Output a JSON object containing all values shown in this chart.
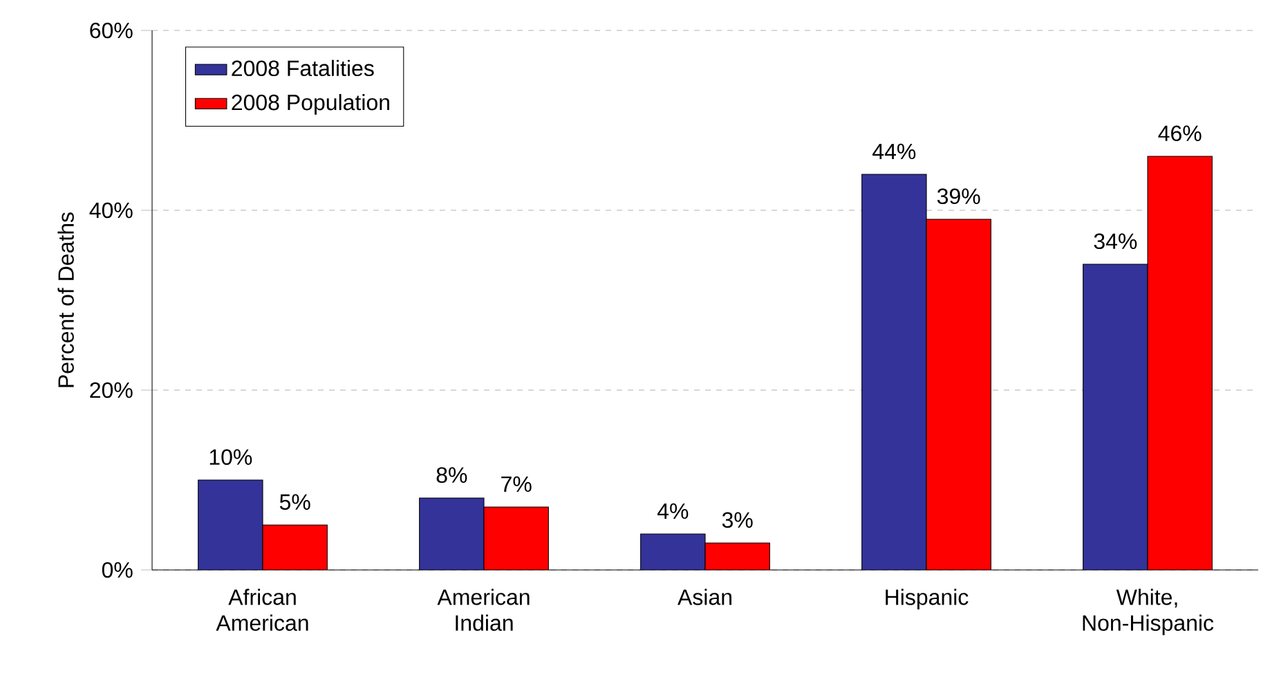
{
  "chart_data": {
    "type": "bar",
    "ylabel": "Percent of Deaths",
    "categories": [
      "African American",
      "American Indian",
      "Asian",
      "Hispanic",
      "White, Non-Hispanic"
    ],
    "series": [
      {
        "name": "2008 Fatalities",
        "color": "#333399",
        "values": [
          10,
          8,
          4,
          44,
          34
        ],
        "value_labels": [
          "10%",
          "8%",
          "4%",
          "44%",
          "34%"
        ]
      },
      {
        "name": "2008 Population",
        "color": "#ff0000",
        "values": [
          5,
          7,
          3,
          39,
          46
        ],
        "value_labels": [
          "5%",
          "7%",
          "3%",
          "39%",
          "46%"
        ]
      }
    ],
    "ylim": [
      0,
      60
    ],
    "yticks": [
      {
        "value": 0,
        "label": "0%"
      },
      {
        "value": 20,
        "label": "20%"
      },
      {
        "value": 40,
        "label": "40%"
      },
      {
        "value": 60,
        "label": "60%"
      }
    ],
    "grid": "y",
    "legend": "top left"
  }
}
